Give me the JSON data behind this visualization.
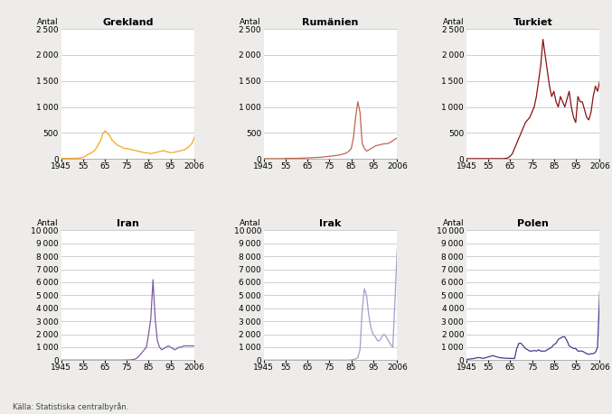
{
  "titles": [
    "Grekland",
    "Rumänien",
    "Turkiet",
    "Iran",
    "Irak",
    "Polen"
  ],
  "colors": [
    "#F5A623",
    "#C0654A",
    "#8B1010",
    "#7B5EA7",
    "#A89CC8",
    "#4B3A8C"
  ],
  "source_text": "Källa: Statistiska centralbyrån.",
  "background_color": "#EDECEA",
  "plot_bg": "#FFFFFF",
  "grid_color": "#BBBBBB",
  "grekland": {
    "years": [
      1945,
      1946,
      1947,
      1948,
      1949,
      1950,
      1951,
      1952,
      1953,
      1954,
      1955,
      1956,
      1957,
      1958,
      1959,
      1960,
      1961,
      1962,
      1963,
      1964,
      1965,
      1966,
      1967,
      1968,
      1969,
      1970,
      1971,
      1972,
      1973,
      1974,
      1975,
      1976,
      1977,
      1978,
      1979,
      1980,
      1981,
      1982,
      1983,
      1984,
      1985,
      1986,
      1987,
      1988,
      1989,
      1990,
      1991,
      1992,
      1993,
      1994,
      1995,
      1996,
      1997,
      1998,
      1999,
      2000,
      2001,
      2002,
      2003,
      2004,
      2005,
      2006
    ],
    "values": [
      10,
      10,
      10,
      10,
      10,
      10,
      10,
      15,
      15,
      20,
      30,
      50,
      80,
      100,
      120,
      150,
      200,
      280,
      350,
      480,
      540,
      500,
      460,
      380,
      330,
      290,
      260,
      240,
      220,
      200,
      200,
      190,
      180,
      170,
      160,
      150,
      140,
      130,
      120,
      115,
      110,
      100,
      110,
      120,
      130,
      140,
      150,
      160,
      140,
      130,
      120,
      120,
      130,
      140,
      150,
      160,
      170,
      190,
      220,
      260,
      310,
      420
    ]
  },
  "rumanien": {
    "years": [
      1945,
      1946,
      1947,
      1948,
      1949,
      1950,
      1951,
      1952,
      1953,
      1954,
      1955,
      1956,
      1957,
      1958,
      1959,
      1960,
      1961,
      1962,
      1963,
      1964,
      1965,
      1966,
      1967,
      1968,
      1969,
      1970,
      1971,
      1972,
      1973,
      1974,
      1975,
      1976,
      1977,
      1978,
      1979,
      1980,
      1981,
      1982,
      1983,
      1984,
      1985,
      1986,
      1987,
      1988,
      1989,
      1990,
      1991,
      1992,
      1993,
      1994,
      1995,
      1996,
      1997,
      1998,
      1999,
      2000,
      2001,
      2002,
      2003,
      2004,
      2005,
      2006
    ],
    "values": [
      5,
      5,
      5,
      5,
      5,
      5,
      5,
      5,
      5,
      5,
      10,
      10,
      10,
      10,
      10,
      10,
      10,
      15,
      15,
      15,
      20,
      20,
      20,
      25,
      25,
      30,
      30,
      35,
      40,
      45,
      50,
      55,
      60,
      65,
      70,
      80,
      90,
      100,
      120,
      150,
      200,
      400,
      800,
      1100,
      900,
      300,
      200,
      150,
      170,
      200,
      220,
      250,
      260,
      270,
      280,
      290,
      290,
      300,
      320,
      350,
      380,
      400
    ]
  },
  "turkiet": {
    "years": [
      1945,
      1946,
      1947,
      1948,
      1949,
      1950,
      1951,
      1952,
      1953,
      1954,
      1955,
      1956,
      1957,
      1958,
      1959,
      1960,
      1961,
      1962,
      1963,
      1964,
      1965,
      1966,
      1967,
      1968,
      1969,
      1970,
      1971,
      1972,
      1973,
      1974,
      1975,
      1976,
      1977,
      1978,
      1979,
      1980,
      1981,
      1982,
      1983,
      1984,
      1985,
      1986,
      1987,
      1988,
      1989,
      1990,
      1991,
      1992,
      1993,
      1994,
      1995,
      1996,
      1997,
      1998,
      1999,
      2000,
      2001,
      2002,
      2003,
      2004,
      2005,
      2006
    ],
    "values": [
      5,
      5,
      5,
      5,
      5,
      5,
      5,
      5,
      5,
      5,
      5,
      5,
      5,
      5,
      5,
      5,
      5,
      5,
      10,
      20,
      50,
      100,
      200,
      300,
      400,
      500,
      600,
      700,
      750,
      800,
      900,
      1000,
      1200,
      1500,
      1800,
      2300,
      2000,
      1700,
      1400,
      1200,
      1300,
      1100,
      1000,
      1200,
      1100,
      1000,
      1150,
      1300,
      1000,
      800,
      700,
      1200,
      1100,
      1100,
      950,
      800,
      750,
      900,
      1200,
      1400,
      1300,
      1500
    ]
  },
  "iran": {
    "years": [
      1945,
      1946,
      1947,
      1948,
      1949,
      1950,
      1951,
      1952,
      1953,
      1954,
      1955,
      1956,
      1957,
      1958,
      1959,
      1960,
      1961,
      1962,
      1963,
      1964,
      1965,
      1966,
      1967,
      1968,
      1969,
      1970,
      1971,
      1972,
      1973,
      1974,
      1975,
      1976,
      1977,
      1978,
      1979,
      1980,
      1981,
      1982,
      1983,
      1984,
      1985,
      1986,
      1987,
      1988,
      1989,
      1990,
      1991,
      1992,
      1993,
      1994,
      1995,
      1996,
      1997,
      1998,
      1999,
      2000,
      2001,
      2002,
      2003,
      2004,
      2005,
      2006
    ],
    "values": [
      5,
      5,
      5,
      5,
      5,
      5,
      5,
      5,
      5,
      5,
      5,
      5,
      5,
      5,
      5,
      5,
      5,
      5,
      5,
      5,
      5,
      5,
      5,
      5,
      5,
      5,
      5,
      5,
      5,
      10,
      15,
      20,
      30,
      50,
      100,
      200,
      400,
      600,
      800,
      1000,
      2000,
      3200,
      6200,
      3200,
      1500,
      1000,
      800,
      900,
      1000,
      1100,
      1000,
      900,
      800,
      900,
      1000,
      1000,
      1100,
      1100,
      1100,
      1100,
      1100,
      1100
    ]
  },
  "irak": {
    "years": [
      1945,
      1946,
      1947,
      1948,
      1949,
      1950,
      1951,
      1952,
      1953,
      1954,
      1955,
      1956,
      1957,
      1958,
      1959,
      1960,
      1961,
      1962,
      1963,
      1964,
      1965,
      1966,
      1967,
      1968,
      1969,
      1970,
      1971,
      1972,
      1973,
      1974,
      1975,
      1976,
      1977,
      1978,
      1979,
      1980,
      1981,
      1982,
      1983,
      1984,
      1985,
      1986,
      1987,
      1988,
      1989,
      1990,
      1991,
      1992,
      1993,
      1994,
      1995,
      1996,
      1997,
      1998,
      1999,
      2000,
      2001,
      2002,
      2003,
      2004,
      2005,
      2006
    ],
    "values": [
      5,
      5,
      5,
      5,
      5,
      5,
      5,
      5,
      5,
      5,
      5,
      5,
      5,
      5,
      5,
      5,
      5,
      5,
      5,
      5,
      5,
      5,
      5,
      5,
      5,
      5,
      5,
      5,
      5,
      5,
      5,
      5,
      5,
      5,
      5,
      5,
      5,
      5,
      5,
      10,
      20,
      50,
      100,
      200,
      800,
      3800,
      5500,
      5000,
      3500,
      2500,
      2000,
      1800,
      1500,
      1500,
      1800,
      2000,
      1800,
      1500,
      1200,
      1000,
      4500,
      8500
    ]
  },
  "polen": {
    "years": [
      1945,
      1946,
      1947,
      1948,
      1949,
      1950,
      1951,
      1952,
      1953,
      1954,
      1955,
      1956,
      1957,
      1958,
      1959,
      1960,
      1961,
      1962,
      1963,
      1964,
      1965,
      1966,
      1967,
      1968,
      1969,
      1970,
      1971,
      1972,
      1973,
      1974,
      1975,
      1976,
      1977,
      1978,
      1979,
      1980,
      1981,
      1982,
      1983,
      1984,
      1985,
      1986,
      1987,
      1988,
      1989,
      1990,
      1991,
      1992,
      1993,
      1994,
      1995,
      1996,
      1997,
      1998,
      1999,
      2000,
      2001,
      2002,
      2003,
      2004,
      2005,
      2006
    ],
    "values": [
      50,
      80,
      100,
      120,
      150,
      200,
      200,
      150,
      150,
      200,
      250,
      300,
      350,
      300,
      250,
      200,
      180,
      160,
      150,
      140,
      140,
      130,
      130,
      900,
      1300,
      1300,
      1100,
      900,
      800,
      700,
      700,
      750,
      700,
      800,
      700,
      700,
      700,
      800,
      900,
      1000,
      1200,
      1300,
      1600,
      1700,
      1800,
      1800,
      1500,
      1100,
      1000,
      900,
      900,
      700,
      700,
      700,
      600,
      500,
      450,
      500,
      500,
      600,
      1000,
      5300
    ]
  }
}
